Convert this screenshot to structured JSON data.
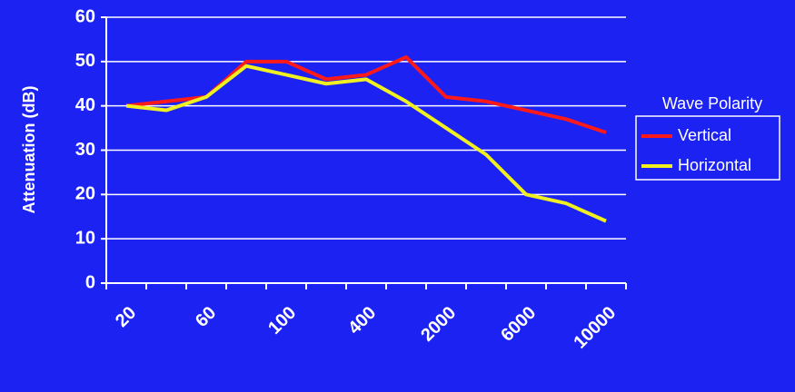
{
  "chart_data": {
    "type": "line",
    "y_label": "Attenuation (dB)",
    "legend_title": "Wave Polarity",
    "categories": [
      "20",
      null,
      "60",
      null,
      "100",
      null,
      "400",
      null,
      "2000",
      null,
      "6000",
      null,
      "10000"
    ],
    "series": [
      {
        "name": "Vertical",
        "color": "#ff1a1a",
        "values": [
          40,
          41,
          42,
          50,
          50,
          46,
          47,
          51,
          42,
          41,
          39,
          37,
          34
        ]
      },
      {
        "name": "Horizontal",
        "color": "#f0f020",
        "values": [
          40,
          39,
          42,
          49,
          47,
          45,
          46,
          41,
          35,
          29,
          20,
          18,
          14
        ]
      }
    ],
    "ylim": [
      0,
      60
    ],
    "yticks": [
      0,
      10,
      20,
      30,
      40,
      50,
      60
    ],
    "grid": true
  }
}
